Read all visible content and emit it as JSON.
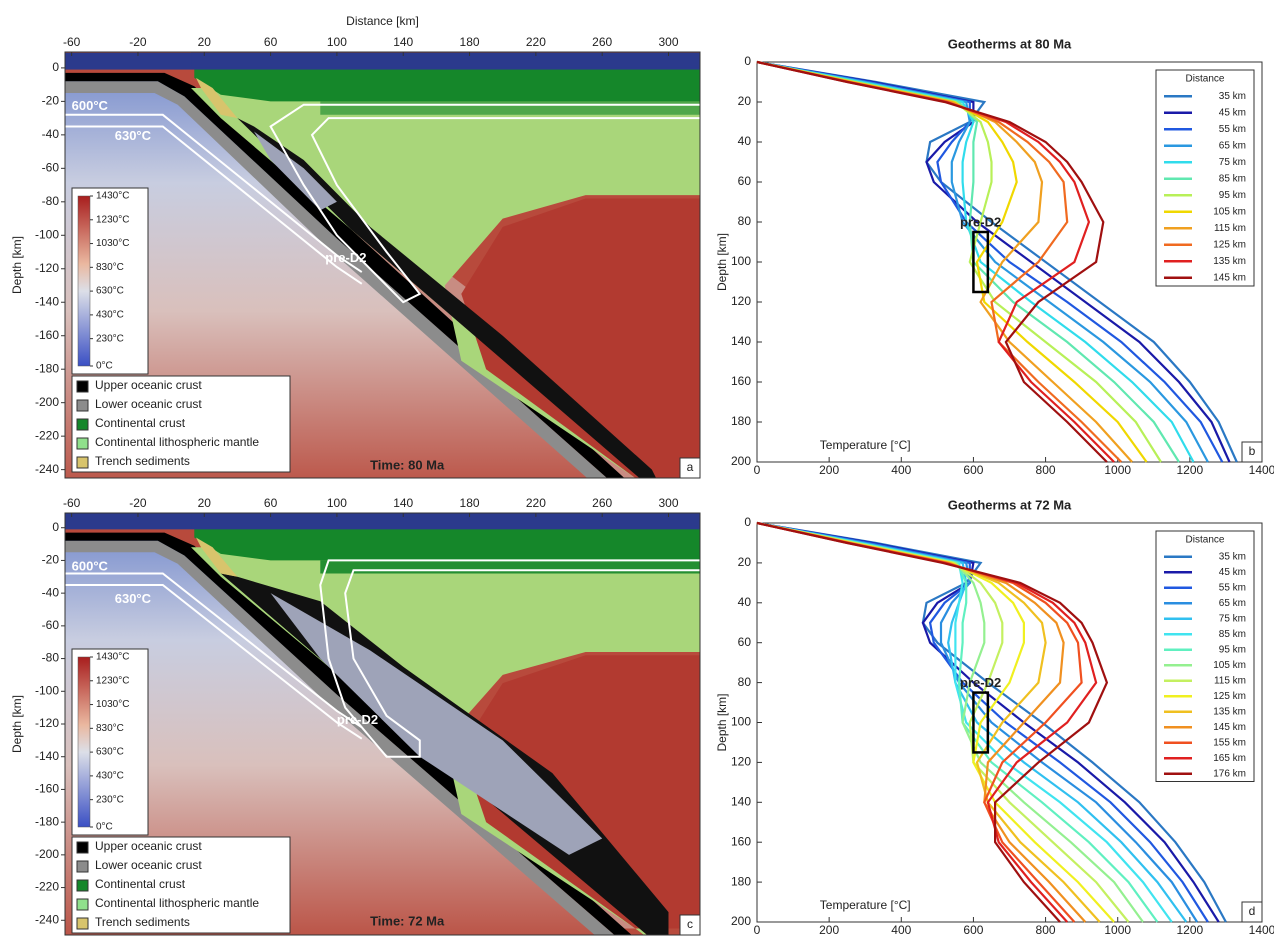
{
  "chart_data": [
    {
      "type": "model",
      "panel": "a",
      "xlabel": "Distance [km]",
      "ylabel": "Depth [km]",
      "xlim": [
        -64,
        319
      ],
      "xticks": [
        -60,
        -20,
        20,
        60,
        100,
        140,
        180,
        220,
        260,
        300
      ],
      "ylim": [
        -245,
        9.5
      ],
      "yticks": [
        0,
        -20,
        -40,
        -60,
        -80,
        -100,
        -120,
        -140,
        -160,
        -180,
        -200,
        -220,
        -240
      ],
      "clim": [
        0,
        1430
      ],
      "colorbar_ticks": [
        {
          "value": 1430,
          "label": "1430°C"
        },
        {
          "value": 1230,
          "label": "1230°C"
        },
        {
          "value": 1030,
          "label": "1030°C"
        },
        {
          "value": 830,
          "label": "830°C"
        },
        {
          "value": 630,
          "label": "630°C"
        },
        {
          "value": 430,
          "label": "430°C"
        },
        {
          "value": 230,
          "label": "230°C"
        },
        {
          "value": 0,
          "label": "0°C"
        }
      ],
      "legend": [
        "Upper oceanic crust",
        "Lower oceanic crust",
        "Continental crust",
        "Continental lithospheric mantle",
        "Trench sediments"
      ],
      "legend_colors": [
        "#000000",
        "#8c8c8c",
        "#15872a",
        "#90e08c",
        "#d8c46c"
      ],
      "annotations": [
        "600°C",
        "630°C",
        "pre-D2",
        "Time: 80 Ma"
      ]
    },
    {
      "type": "line",
      "panel": "b",
      "title": "Geotherms at 80 Ma",
      "xlabel": "Temperature [°C]",
      "ylabel": "Depth [km]",
      "xlim": [
        0,
        1400
      ],
      "xticks": [
        0,
        200,
        400,
        600,
        800,
        1000,
        1200,
        1400
      ],
      "ylim": [
        200,
        0
      ],
      "yticks": [
        0,
        20,
        40,
        60,
        80,
        100,
        120,
        140,
        160,
        180,
        200
      ],
      "legend_title": "Distance",
      "legend": "upper right",
      "box": {
        "x": [
          600,
          640
        ],
        "y": [
          85,
          115
        ],
        "label": "pre-D2"
      },
      "y": [
        0,
        10,
        20,
        30,
        40,
        50,
        60,
        80,
        100,
        120,
        140,
        160,
        180,
        200
      ],
      "series": [
        {
          "name": "35 km",
          "color": "#2a78c4",
          "values": [
            0,
            330,
            630,
            590,
            480,
            470,
            510,
            650,
            800,
            950,
            1100,
            1200,
            1280,
            1330
          ]
        },
        {
          "name": "45 km",
          "color": "#1a1aa8",
          "values": [
            0,
            320,
            600,
            600,
            520,
            470,
            490,
            610,
            760,
            910,
            1060,
            1170,
            1260,
            1310
          ]
        },
        {
          "name": "55 km",
          "color": "#2058e0",
          "values": [
            0,
            310,
            590,
            590,
            540,
            500,
            510,
            580,
            700,
            860,
            1010,
            1130,
            1230,
            1290
          ]
        },
        {
          "name": "65 km",
          "color": "#2a98e0",
          "values": [
            0,
            300,
            580,
            590,
            560,
            540,
            540,
            570,
            660,
            810,
            960,
            1090,
            1190,
            1250
          ]
        },
        {
          "name": "75 km",
          "color": "#30dcec",
          "values": [
            0,
            290,
            570,
            600,
            580,
            570,
            570,
            580,
            620,
            760,
            910,
            1040,
            1150,
            1210
          ]
        },
        {
          "name": "85 km",
          "color": "#60e8b0",
          "values": [
            0,
            280,
            560,
            610,
            600,
            600,
            600,
            590,
            600,
            710,
            860,
            990,
            1100,
            1170
          ]
        },
        {
          "name": "95 km",
          "color": "#b8f058",
          "values": [
            0,
            270,
            550,
            620,
            640,
            650,
            650,
            620,
            590,
            660,
            800,
            940,
            1050,
            1120
          ]
        },
        {
          "name": "105 km",
          "color": "#f0d800",
          "values": [
            0,
            265,
            545,
            640,
            680,
            710,
            720,
            680,
            610,
            630,
            750,
            880,
            1000,
            1080
          ]
        },
        {
          "name": "115 km",
          "color": "#f0a020",
          "values": [
            0,
            260,
            540,
            660,
            720,
            770,
            790,
            780,
            680,
            620,
            700,
            820,
            940,
            1040
          ]
        },
        {
          "name": "125 km",
          "color": "#f06a20",
          "values": [
            0,
            255,
            530,
            670,
            750,
            810,
            850,
            860,
            780,
            650,
            670,
            780,
            900,
            1010
          ]
        },
        {
          "name": "135 km",
          "color": "#e02020",
          "values": [
            0,
            252,
            525,
            690,
            780,
            840,
            880,
            920,
            880,
            720,
            670,
            760,
            880,
            990
          ]
        },
        {
          "name": "145 km",
          "color": "#a01010",
          "values": [
            0,
            250,
            520,
            700,
            800,
            860,
            900,
            960,
            940,
            780,
            690,
            740,
            860,
            970
          ]
        }
      ]
    },
    {
      "type": "model",
      "panel": "c",
      "ylabel": "Depth [km]",
      "xlim": [
        -64,
        319
      ],
      "xticks": [
        -60,
        -20,
        20,
        60,
        100,
        140,
        180,
        220,
        260,
        300
      ],
      "ylim": [
        -249,
        9
      ],
      "yticks": [
        0,
        -20,
        -40,
        -60,
        -80,
        -100,
        -120,
        -140,
        -160,
        -180,
        -200,
        -220,
        -240
      ],
      "clim": [
        0,
        1430
      ],
      "colorbar_ticks": [
        {
          "value": 1430,
          "label": "1430°C"
        },
        {
          "value": 1230,
          "label": "1230°C"
        },
        {
          "value": 1030,
          "label": "1030°C"
        },
        {
          "value": 830,
          "label": "830°C"
        },
        {
          "value": 630,
          "label": "630°C"
        },
        {
          "value": 430,
          "label": "430°C"
        },
        {
          "value": 230,
          "label": "230°C"
        },
        {
          "value": 0,
          "label": "0°C"
        }
      ],
      "legend": [
        "Upper oceanic crust",
        "Lower oceanic crust",
        "Continental crust",
        "Continental lithospheric mantle",
        "Trench sediments"
      ],
      "legend_colors": [
        "#000000",
        "#8c8c8c",
        "#15872a",
        "#90e08c",
        "#d8c46c"
      ],
      "annotations": [
        "600°C",
        "630°C",
        "pre-D2",
        "Time: 72 Ma"
      ]
    },
    {
      "type": "line",
      "panel": "d",
      "title": "Geotherms at 72 Ma",
      "xlabel": "Temperature [°C]",
      "ylabel": "Depth [km]",
      "xlim": [
        0,
        1400
      ],
      "xticks": [
        0,
        200,
        400,
        600,
        800,
        1000,
        1200,
        1400
      ],
      "ylim": [
        200,
        0
      ],
      "yticks": [
        0,
        20,
        40,
        60,
        80,
        100,
        120,
        140,
        160,
        180,
        200
      ],
      "legend_title": "Distance",
      "legend": "upper right",
      "box": {
        "x": [
          600,
          640
        ],
        "y": [
          85,
          115
        ],
        "label": "pre-D2"
      },
      "y": [
        0,
        10,
        20,
        30,
        40,
        50,
        60,
        80,
        100,
        120,
        140,
        160,
        180,
        200
      ],
      "series": [
        {
          "name": "35 km",
          "color": "#2a78c4",
          "values": [
            0,
            330,
            620,
            580,
            470,
            460,
            500,
            640,
            790,
            930,
            1060,
            1160,
            1240,
            1300
          ]
        },
        {
          "name": "45 km",
          "color": "#1a1aa8",
          "values": [
            0,
            320,
            600,
            590,
            500,
            460,
            480,
            600,
            740,
            890,
            1020,
            1130,
            1210,
            1280
          ]
        },
        {
          "name": "55 km",
          "color": "#2058e0",
          "values": [
            0,
            310,
            590,
            590,
            520,
            480,
            490,
            570,
            690,
            840,
            980,
            1090,
            1180,
            1250
          ]
        },
        {
          "name": "65 km",
          "color": "#2a8ee0",
          "values": [
            0,
            300,
            580,
            590,
            540,
            510,
            510,
            560,
            650,
            790,
            940,
            1050,
            1150,
            1220
          ]
        },
        {
          "name": "75 km",
          "color": "#30c0f0",
          "values": [
            0,
            290,
            570,
            580,
            560,
            540,
            530,
            550,
            610,
            740,
            890,
            1010,
            1110,
            1190
          ]
        },
        {
          "name": "85 km",
          "color": "#40e4f0",
          "values": [
            0,
            285,
            560,
            570,
            560,
            550,
            550,
            550,
            580,
            690,
            840,
            970,
            1070,
            1150
          ]
        },
        {
          "name": "95 km",
          "color": "#60f0c0",
          "values": [
            0,
            280,
            555,
            580,
            580,
            570,
            570,
            560,
            570,
            650,
            790,
            920,
            1030,
            1110
          ]
        },
        {
          "name": "105 km",
          "color": "#94f090",
          "values": [
            0,
            275,
            550,
            600,
            620,
            630,
            630,
            590,
            570,
            620,
            740,
            870,
            990,
            1070
          ]
        },
        {
          "name": "115 km",
          "color": "#c4f060",
          "values": [
            0,
            270,
            545,
            620,
            660,
            680,
            680,
            640,
            590,
            600,
            700,
            820,
            940,
            1030
          ]
        },
        {
          "name": "125 km",
          "color": "#f0f020",
          "values": [
            0,
            265,
            540,
            650,
            710,
            740,
            740,
            700,
            620,
            600,
            660,
            770,
            890,
            990
          ]
        },
        {
          "name": "135 km",
          "color": "#f0c020",
          "values": [
            0,
            262,
            535,
            670,
            740,
            790,
            800,
            780,
            680,
            610,
            640,
            730,
            850,
            950
          ]
        },
        {
          "name": "145 km",
          "color": "#f09020",
          "values": [
            0,
            258,
            530,
            690,
            770,
            830,
            850,
            840,
            740,
            640,
            630,
            700,
            810,
            910
          ]
        },
        {
          "name": "155 km",
          "color": "#f05020",
          "values": [
            0,
            255,
            525,
            710,
            800,
            860,
            890,
            900,
            800,
            680,
            630,
            680,
            780,
            880
          ]
        },
        {
          "name": "165 km",
          "color": "#e02020",
          "values": [
            0,
            252,
            520,
            720,
            820,
            880,
            910,
            940,
            860,
            720,
            640,
            670,
            760,
            860
          ]
        },
        {
          "name": "176 km",
          "color": "#a01010",
          "values": [
            0,
            250,
            515,
            730,
            840,
            900,
            930,
            970,
            920,
            780,
            660,
            660,
            740,
            840
          ]
        }
      ]
    }
  ]
}
